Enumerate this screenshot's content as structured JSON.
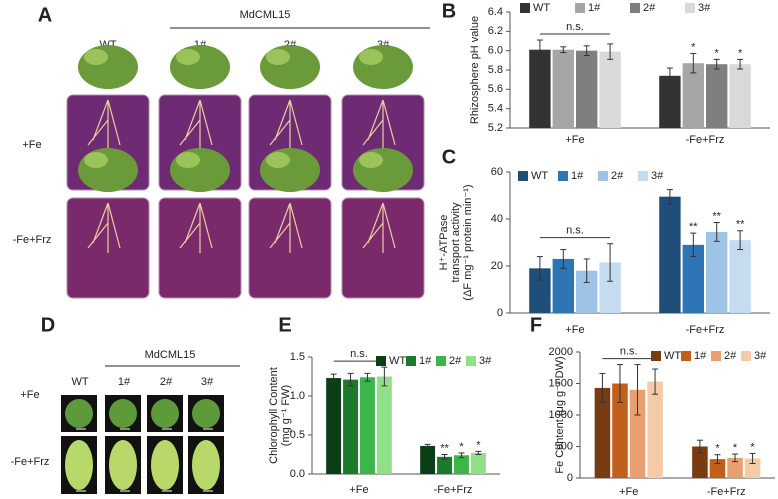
{
  "photo_panels": [
    {
      "letter": "A",
      "group": "MdCML15",
      "columns": [
        "WT",
        "1#",
        "2#",
        "3#"
      ],
      "rows": [
        "+Fe",
        "-Fe+Frz"
      ]
    },
    {
      "letter": "D",
      "group": "MdCML15",
      "columns": [
        "WT",
        "1#",
        "2#",
        "3#"
      ],
      "rows": [
        "+Fe",
        "-Fe+Frz"
      ]
    }
  ],
  "chart_data": [
    {
      "type": "bar",
      "letter": "B",
      "ylabel": [
        "Rhizosphere pH value"
      ],
      "legend": "top",
      "categories": [
        "+Fe",
        "-Fe+Frz"
      ],
      "group_annotations": [
        "n.s.",
        null
      ],
      "ylim": [
        5.2,
        6.4
      ],
      "yticks": [
        5.2,
        5.4,
        5.6,
        5.8,
        {
          "value": 6,
          "label": "6.0"
        },
        6.2,
        6.4
      ],
      "series": [
        {
          "name": "WT",
          "color": "#333333",
          "values": [
            6.01,
            5.74
          ],
          "errors": [
            0.1,
            0.08
          ],
          "significance": [
            null,
            null
          ]
        },
        {
          "name": "1#",
          "color": "#a6a6a6",
          "values": [
            6.01,
            5.87
          ],
          "errors": [
            0.03,
            0.1
          ],
          "significance": [
            null,
            "*"
          ]
        },
        {
          "name": "2#",
          "color": "#7f7f7f",
          "values": [
            6.0,
            5.86
          ],
          "errors": [
            0.05,
            0.05
          ],
          "significance": [
            null,
            "*"
          ]
        },
        {
          "name": "3#",
          "color": "#d9d9d9",
          "values": [
            5.99,
            5.86
          ],
          "errors": [
            0.08,
            0.05
          ],
          "significance": [
            null,
            "*"
          ]
        }
      ]
    },
    {
      "type": "bar",
      "letter": "C",
      "ylabel": [
        "H⁺-ATPase",
        "transport activity",
        "(ΔF mg⁻¹ protein min⁻¹)"
      ],
      "legend": "upper left",
      "categories": [
        "+Fe",
        "-Fe+Frz"
      ],
      "group_annotations": [
        "n.s.",
        null
      ],
      "ylim": [
        0,
        60
      ],
      "yticks": [
        0,
        20,
        40,
        60
      ],
      "series": [
        {
          "name": "WT",
          "color": "#1f4e79",
          "values": [
            19,
            49.5
          ],
          "errors": [
            5,
            3
          ],
          "significance": [
            null,
            null
          ]
        },
        {
          "name": "1#",
          "color": "#2e75b6",
          "values": [
            23,
            29
          ],
          "errors": [
            4,
            5
          ],
          "significance": [
            null,
            "**"
          ]
        },
        {
          "name": "2#",
          "color": "#9dc3e6",
          "values": [
            18,
            34.5
          ],
          "errors": [
            5,
            4
          ],
          "significance": [
            null,
            "**"
          ]
        },
        {
          "name": "3#",
          "color": "#c5dcf0",
          "values": [
            21.5,
            31
          ],
          "errors": [
            8,
            4
          ],
          "significance": [
            null,
            "**"
          ]
        }
      ]
    },
    {
      "type": "bar",
      "letter": "E",
      "ylabel": [
        "Chlorophyll Content",
        "(mg g⁻¹ FW)"
      ],
      "legend": "upper right",
      "categories": [
        "+Fe",
        "-Fe+Frz"
      ],
      "group_annotations": [
        "n.s.",
        null
      ],
      "ylim": [
        0,
        1.5
      ],
      "yticks": [
        {
          "value": 0,
          "label": "0.0"
        },
        0.5,
        {
          "value": 1,
          "label": "1.0"
        },
        1.5
      ],
      "series": [
        {
          "name": "WT",
          "color": "#0b3d16",
          "values": [
            1.23,
            0.36
          ],
          "errors": [
            0.05,
            0.02
          ],
          "significance": [
            null,
            null
          ]
        },
        {
          "name": "1#",
          "color": "#1c7a2c",
          "values": [
            1.21,
            0.22
          ],
          "errors": [
            0.08,
            0.03
          ],
          "significance": [
            null,
            "**"
          ]
        },
        {
          "name": "2#",
          "color": "#3cb54a",
          "values": [
            1.24,
            0.24
          ],
          "errors": [
            0.05,
            0.03
          ],
          "significance": [
            null,
            "*"
          ]
        },
        {
          "name": "3#",
          "color": "#90e08a",
          "values": [
            1.25,
            0.27
          ],
          "errors": [
            0.12,
            0.02
          ],
          "significance": [
            null,
            "*"
          ]
        }
      ]
    },
    {
      "type": "bar",
      "letter": "F",
      "ylabel": [
        "Fe Content (μg g⁻¹ DW)"
      ],
      "legend": "upper right",
      "categories": [
        "+Fe",
        "-Fe+Frz"
      ],
      "group_annotations": [
        "n.s.",
        null
      ],
      "ylim": [
        0,
        2000
      ],
      "yticks": [
        0,
        500,
        1000,
        1500,
        2000
      ],
      "series": [
        {
          "name": "WT",
          "color": "#7a3b10",
          "values": [
            1430,
            500
          ],
          "errors": [
            230,
            100
          ],
          "significance": [
            null,
            null
          ]
        },
        {
          "name": "1#",
          "color": "#c0601a",
          "values": [
            1500,
            300
          ],
          "errors": [
            300,
            70
          ],
          "significance": [
            null,
            "*"
          ]
        },
        {
          "name": "2#",
          "color": "#e8a070",
          "values": [
            1400,
            320
          ],
          "errors": [
            400,
            60
          ],
          "significance": [
            null,
            "*"
          ]
        },
        {
          "name": "3#",
          "color": "#f5cba7",
          "values": [
            1530,
            310
          ],
          "errors": [
            200,
            80
          ],
          "significance": [
            null,
            "*"
          ]
        }
      ]
    }
  ]
}
